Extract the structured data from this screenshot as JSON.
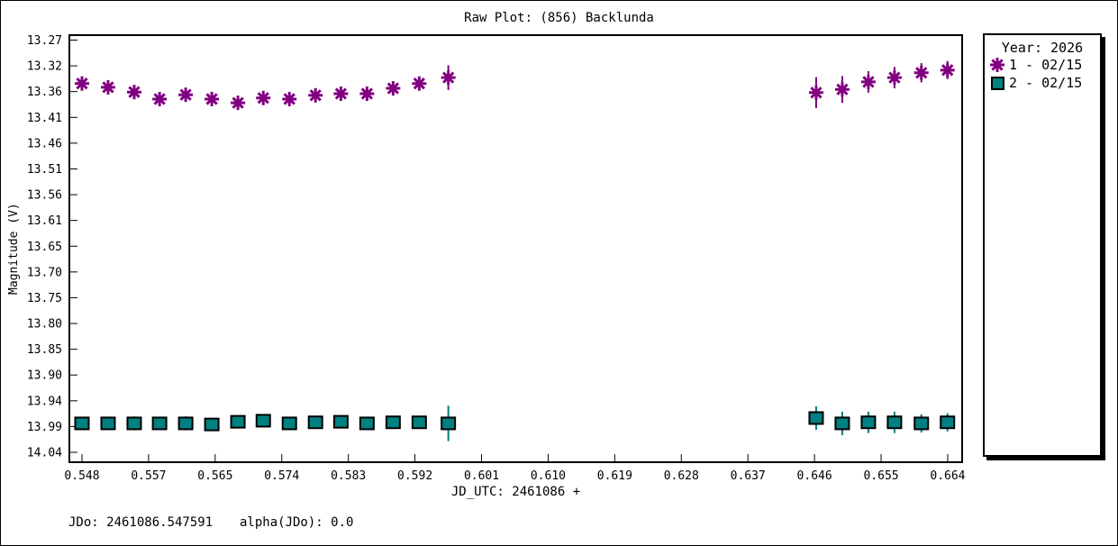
{
  "window_title": "Raw Plot: (856) Backlunda",
  "axes": {
    "y_label": "Magnitude (V)",
    "x_label": "JD_UTC: 2461086 +",
    "y_ticks": [
      "13.27",
      "13.32",
      "13.36",
      "13.41",
      "13.46",
      "13.51",
      "13.56",
      "13.61",
      "13.65",
      "13.70",
      "13.75",
      "13.80",
      "13.85",
      "13.90",
      "13.94",
      "13.99",
      "14.04"
    ],
    "x_ticks": [
      "0.548",
      "0.557",
      "0.565",
      "0.574",
      "0.583",
      "0.592",
      "0.601",
      "0.610",
      "0.619",
      "0.628",
      "0.637",
      "0.646",
      "0.655",
      "0.664"
    ]
  },
  "legend": {
    "title": "Year: 2026",
    "entries": [
      {
        "label": "1 - 02/15",
        "marker": "asterisk",
        "color": "#800080"
      },
      {
        "label": "2 - 02/15",
        "marker": "square",
        "color": "#008080"
      }
    ]
  },
  "footer": {
    "jdo_label": "JDo: 2461086.547591",
    "alpha_label": "alpha(JDo): 0.0"
  },
  "colors": {
    "session1": "#800080",
    "session2": "#008080",
    "axis": "#000000",
    "background": "#ffffff"
  },
  "chart_data": {
    "type": "scatter",
    "title": "Raw Plot: (856) Backlunda",
    "xlabel": "JD_UTC: 2461086 +",
    "ylabel": "Magnitude (V)",
    "x_tick_labels": [
      "0.548",
      "0.557",
      "0.565",
      "0.574",
      "0.583",
      "0.592",
      "0.601",
      "0.610",
      "0.619",
      "0.628",
      "0.637",
      "0.646",
      "0.655",
      "0.664"
    ],
    "y_tick_labels": [
      "13.27",
      "13.32",
      "13.36",
      "13.41",
      "13.46",
      "13.51",
      "13.56",
      "13.61",
      "13.65",
      "13.70",
      "13.75",
      "13.80",
      "13.85",
      "13.90",
      "13.94",
      "13.99",
      "14.04"
    ],
    "xlim": [
      0.5462,
      0.6661
    ],
    "ylim": [
      14.059,
      13.259
    ],
    "y_axis_inverted": true,
    "grid": false,
    "legend_position": "right",
    "legend_title": "Year: 2026",
    "series": [
      {
        "name": "1 - 02/15",
        "marker": "asterisk",
        "color": "#800080",
        "x": [
          0.548,
          0.5515,
          0.555,
          0.5584,
          0.5619,
          0.5654,
          0.5689,
          0.5723,
          0.5758,
          0.5793,
          0.5827,
          0.5862,
          0.5897,
          0.5932,
          0.5971,
          0.6464,
          0.6499,
          0.6534,
          0.6569,
          0.6605,
          0.664
        ],
        "y": [
          13.351,
          13.358,
          13.367,
          13.38,
          13.372,
          13.38,
          13.387,
          13.378,
          13.38,
          13.373,
          13.37,
          13.37,
          13.36,
          13.351,
          13.34,
          13.368,
          13.362,
          13.348,
          13.34,
          13.331,
          13.326
        ],
        "yerr": [
          0.009,
          0.008,
          0.011,
          0.008,
          0.008,
          0.008,
          0.008,
          0.008,
          0.008,
          0.008,
          0.008,
          0.008,
          0.009,
          0.01,
          0.023,
          0.029,
          0.025,
          0.02,
          0.02,
          0.018,
          0.017
        ]
      },
      {
        "name": "2 - 02/15",
        "marker": "square",
        "color": "#008080",
        "x": [
          0.548,
          0.5515,
          0.555,
          0.5584,
          0.5619,
          0.5654,
          0.5689,
          0.5723,
          0.5758,
          0.5793,
          0.5827,
          0.5862,
          0.5897,
          0.5932,
          0.5971,
          0.6464,
          0.6499,
          0.6534,
          0.6569,
          0.6605,
          0.664
        ],
        "y": [
          13.985,
          13.985,
          13.985,
          13.985,
          13.985,
          13.987,
          13.982,
          13.98,
          13.985,
          13.983,
          13.982,
          13.985,
          13.983,
          13.983,
          13.985,
          13.975,
          13.985,
          13.983,
          13.983,
          13.985,
          13.983
        ],
        "yerr": [
          0.007,
          0.007,
          0.013,
          0.007,
          0.013,
          0.007,
          0.007,
          0.007,
          0.007,
          0.007,
          0.007,
          0.007,
          0.008,
          0.008,
          0.033,
          0.022,
          0.022,
          0.02,
          0.02,
          0.017,
          0.017
        ]
      }
    ]
  }
}
